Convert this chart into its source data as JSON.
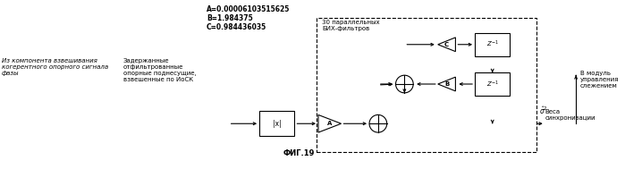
{
  "bg_color": "#ffffff",
  "constants_text": "A=0.00006103515625\nB=1.984375\nC=0.984436035",
  "label_left1": "Из компонента взвешивания\nкогерентного опорного сигнала\nфазы",
  "label_left2": "Задержанные\nотфильтрованные\nопорные поднесущие,\nвзвешенные по ИоСК",
  "label_right1": "Веса\nсинхронизации",
  "label_right2": "В модуль\nуправления\nслежением",
  "label_box": "30 параллельных\nБИХ-фильтров",
  "fig_label": "ФИГ.19"
}
